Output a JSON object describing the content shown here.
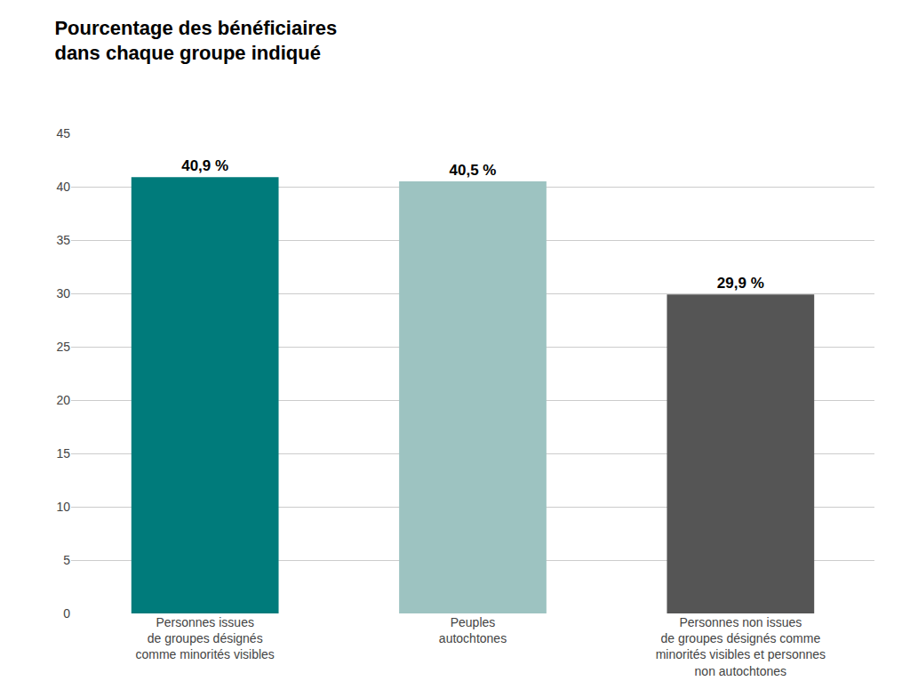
{
  "chart_data": {
    "type": "bar",
    "title": "Pourcentage des bénéficiaires\ndans chaque groupe indiqué",
    "categories": [
      "Personnes issues\nde groupes désignés\ncomme minorités visibles",
      "Peuples\nautochtones",
      "Personnes non issues\nde groupes désignés comme\nminorités visibles et personnes\nnon autochtones"
    ],
    "values": [
      40.9,
      40.5,
      29.9
    ],
    "value_labels": [
      "40,9 %",
      "40,5 %",
      "29,9 %"
    ],
    "data_labels": true,
    "colors": [
      "#007B7B",
      "#9DC3C1",
      "#555555"
    ],
    "ylim": [
      0,
      45
    ],
    "yticks": [
      0,
      5,
      10,
      15,
      20,
      25,
      30,
      35,
      40,
      45
    ],
    "grid": true
  }
}
